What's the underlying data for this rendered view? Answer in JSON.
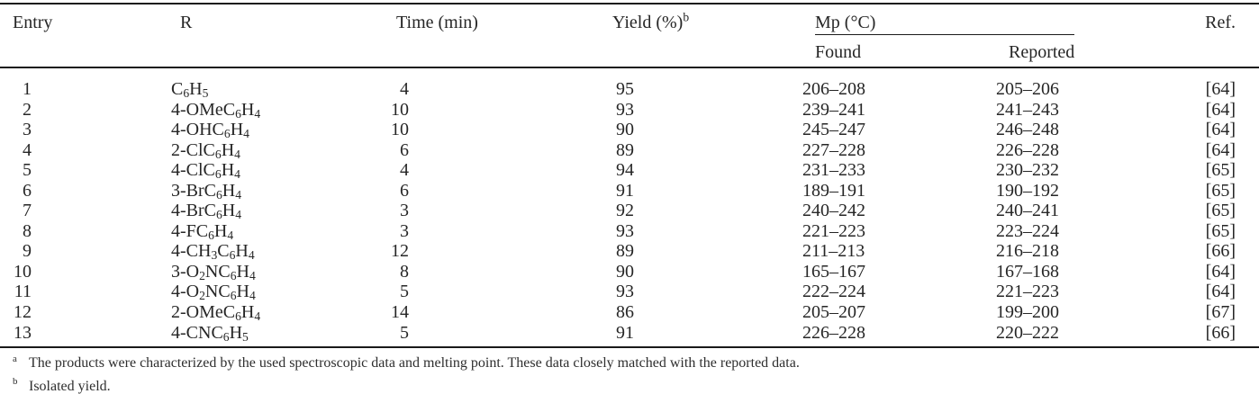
{
  "page": {
    "background": "#ffffff",
    "text_color": "#262626",
    "rule_color": "#1a1a1a"
  },
  "table": {
    "header": {
      "entry": "Entry",
      "r": "R",
      "time": "Time (min)",
      "yield": "Yield (%)",
      "yield_sup": "b",
      "mp_group": "Mp (°C)",
      "found": "Found",
      "reported": "Reported",
      "ref": "Ref."
    },
    "rows": [
      {
        "entry": "1",
        "r": "C6H5",
        "time": "4",
        "yield": "95",
        "found": "206–208",
        "reported": "205–206",
        "ref": "[64]"
      },
      {
        "entry": "2",
        "r": "4-OMeC6H4",
        "time": "10",
        "yield": "93",
        "found": "239–241",
        "reported": "241–243",
        "ref": "[64]"
      },
      {
        "entry": "3",
        "r": "4-OHC6H4",
        "time": "10",
        "yield": "90",
        "found": "245–247",
        "reported": "246–248",
        "ref": "[64]"
      },
      {
        "entry": "4",
        "r": "2-ClC6H4",
        "time": "6",
        "yield": "89",
        "found": "227–228",
        "reported": "226–228",
        "ref": "[64]"
      },
      {
        "entry": "5",
        "r": "4-ClC6H4",
        "time": "4",
        "yield": "94",
        "found": "231–233",
        "reported": "230–232",
        "ref": "[65]"
      },
      {
        "entry": "6",
        "r": "3-BrC6H4",
        "time": "6",
        "yield": "91",
        "found": "189–191",
        "reported": "190–192",
        "ref": "[65]"
      },
      {
        "entry": "7",
        "r": "4-BrC6H4",
        "time": "3",
        "yield": "92",
        "found": "240–242",
        "reported": "240–241",
        "ref": "[65]"
      },
      {
        "entry": "8",
        "r": "4-FC6H4",
        "time": "3",
        "yield": "93",
        "found": "221–223",
        "reported": "223–224",
        "ref": "[65]"
      },
      {
        "entry": "9",
        "r": "4-CH3C6H4",
        "time": "12",
        "yield": "89",
        "found": "211–213",
        "reported": "216–218",
        "ref": "[66]"
      },
      {
        "entry": "10",
        "r": "3-O2NC6H4",
        "time": "8",
        "yield": "90",
        "found": "165–167",
        "reported": "167–168",
        "ref": "[64]"
      },
      {
        "entry": "11",
        "r": "4-O2NC6H4",
        "time": "5",
        "yield": "93",
        "found": "222–224",
        "reported": "221–223",
        "ref": "[64]"
      },
      {
        "entry": "12",
        "r": "2-OMeC6H4",
        "time": "14",
        "yield": "86",
        "found": "205–207",
        "reported": "199–200",
        "ref": "[67]"
      },
      {
        "entry": "13",
        "r": "4-CNC6H5",
        "time": "5",
        "yield": "91",
        "found": "226–228",
        "reported": "220–222",
        "ref": "[66]"
      }
    ],
    "footnotes": [
      {
        "marker": "a",
        "text": "The products were characterized by the used spectroscopic data and melting point. These data closely matched with the reported data."
      },
      {
        "marker": "b",
        "text": "Isolated yield."
      }
    ]
  }
}
